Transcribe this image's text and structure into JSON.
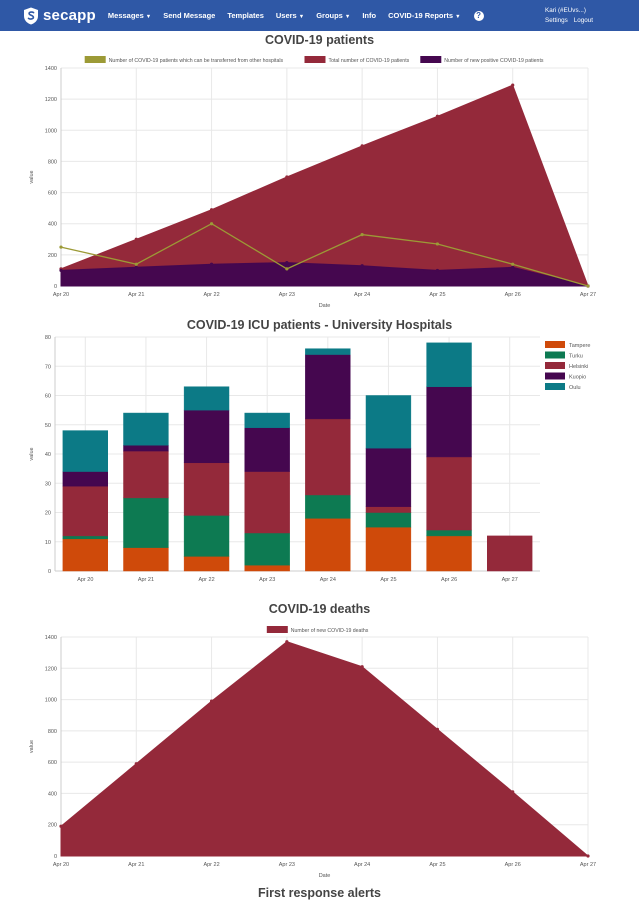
{
  "nav": {
    "brand": "secapp",
    "items": [
      {
        "label": "Messages",
        "caret": true
      },
      {
        "label": "Send Message",
        "caret": false
      },
      {
        "label": "Templates",
        "caret": false
      },
      {
        "label": "Users",
        "caret": true
      },
      {
        "label": "Groups",
        "caret": true
      },
      {
        "label": "Info",
        "caret": false
      },
      {
        "label": "COVID-19 Reports",
        "caret": true
      }
    ],
    "help": "?",
    "user": "Kari (#EUvs...)",
    "settings": "Settings",
    "logout": "Logout"
  },
  "titles": {
    "patients": "COVID-19 patients",
    "icu": "COVID-19 ICU patients - University Hospitals",
    "deaths": "COVID-19 deaths",
    "alerts": "First response alerts"
  },
  "colors": {
    "nav": "#2f58a6",
    "olive": "#9c9a36",
    "crimson": "#94293a",
    "purple": "#45074f",
    "orange": "#cf4a0a",
    "green": "#0d7a52",
    "teal": "#0c7a86"
  },
  "chart_data": [
    {
      "id": "patients",
      "type": "area",
      "title": "COVID-19 patients",
      "xlabel": "Date",
      "ylabel": "value",
      "categories": [
        "Apr 20",
        "Apr 21",
        "Apr 22",
        "Apr 23",
        "Apr 24",
        "Apr 25",
        "Apr 26",
        "Apr 27"
      ],
      "ylim": [
        0,
        1400
      ],
      "yticks": [
        0,
        200,
        400,
        600,
        800,
        1000,
        1200,
        1400
      ],
      "legend": "top",
      "series": [
        {
          "name": "Number of COVID-19 patients which can be transferred from other hospitals",
          "kind": "line",
          "color": "#9c9a36",
          "values": [
            250,
            140,
            400,
            110,
            330,
            270,
            140,
            0
          ]
        },
        {
          "name": "Total number of COVID-19 patients",
          "kind": "area",
          "color": "#94293a",
          "values": [
            110,
            300,
            490,
            700,
            900,
            1090,
            1290,
            0
          ]
        },
        {
          "name": "Number of new positive COVID-19 patients",
          "kind": "area",
          "color": "#45074f",
          "values": [
            100,
            120,
            140,
            150,
            130,
            100,
            120,
            0
          ]
        }
      ]
    },
    {
      "id": "icu",
      "type": "bar",
      "stacked": true,
      "title": "COVID-19 ICU patients - University Hospitals",
      "xlabel": "",
      "ylabel": "value",
      "categories": [
        "Apr 20",
        "Apr 21",
        "Apr 22",
        "Apr 23",
        "Apr 24",
        "Apr 25",
        "Apr 26",
        "Apr 27"
      ],
      "ylim": [
        0,
        80
      ],
      "yticks": [
        0,
        10,
        20,
        30,
        40,
        50,
        60,
        70,
        80
      ],
      "legend": "right",
      "series": [
        {
          "name": "Tampere",
          "color": "#cf4a0a",
          "values": [
            11,
            8,
            5,
            2,
            18,
            15,
            12,
            0
          ]
        },
        {
          "name": "Turku",
          "color": "#0d7a52",
          "values": [
            1,
            17,
            14,
            11,
            8,
            5,
            2,
            0
          ]
        },
        {
          "name": "Helsinki",
          "color": "#94293a",
          "values": [
            17,
            16,
            18,
            21,
            26,
            2,
            25,
            12
          ]
        },
        {
          "name": "Kuopio",
          "color": "#45074f",
          "values": [
            5,
            2,
            18,
            15,
            22,
            20,
            24,
            0
          ]
        },
        {
          "name": "Oulu",
          "color": "#0c7a86",
          "values": [
            14,
            11,
            8,
            5,
            2,
            18,
            15,
            0
          ]
        }
      ]
    },
    {
      "id": "deaths",
      "type": "area",
      "title": "COVID-19 deaths",
      "xlabel": "Date",
      "ylabel": "value",
      "categories": [
        "Apr 20",
        "Apr 21",
        "Apr 22",
        "Apr 23",
        "Apr 24",
        "Apr 25",
        "Apr 26",
        "Apr 27"
      ],
      "ylim": [
        0,
        1400
      ],
      "yticks": [
        0,
        200,
        400,
        600,
        800,
        1000,
        1200,
        1400
      ],
      "legend": "top",
      "series": [
        {
          "name": "Number of new COVID-19 deaths",
          "kind": "area",
          "color": "#94293a",
          "values": [
            190,
            590,
            990,
            1370,
            1210,
            810,
            410,
            0
          ]
        }
      ]
    }
  ]
}
